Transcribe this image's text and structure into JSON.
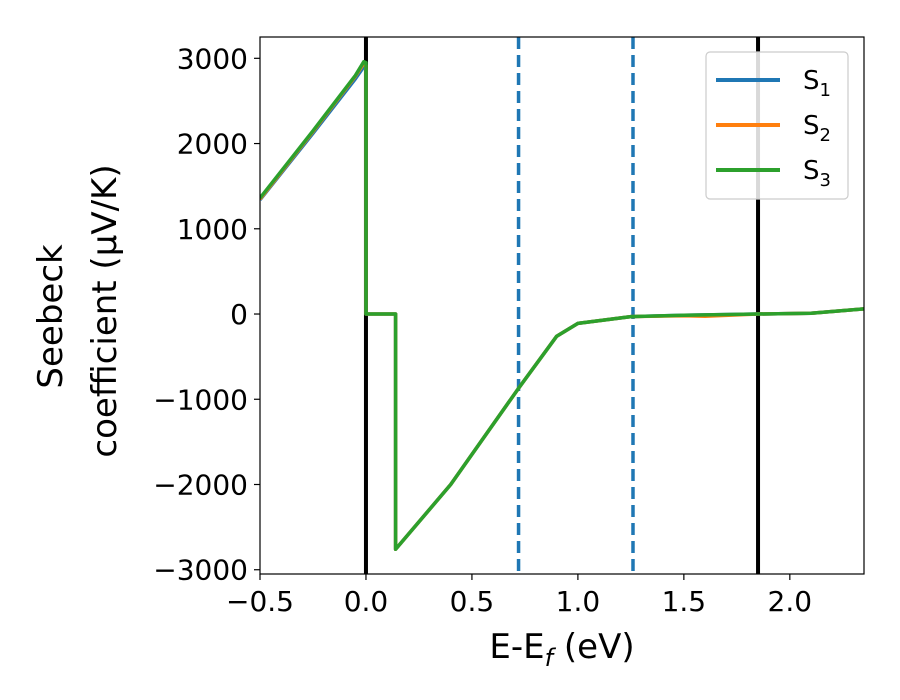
{
  "chart_data": {
    "type": "line",
    "xlabel": "E-E",
    "xlabel_sub": "f",
    "xlabel_unit": " (eV)",
    "ylabel_line1": "Seebeck",
    "ylabel_line2": "coefficient  (μV/K)",
    "xlim": [
      -0.5,
      2.35
    ],
    "ylim": [
      -3050,
      3250
    ],
    "xticks": [
      -0.5,
      0.0,
      0.5,
      1.0,
      1.5,
      2.0
    ],
    "xtick_labels": [
      "−0.5",
      "0.0",
      "0.5",
      "1.0",
      "1.5",
      "2.0"
    ],
    "yticks": [
      -3000,
      -2000,
      -1000,
      0,
      1000,
      2000,
      3000
    ],
    "ytick_labels": [
      "−3000",
      "−2000",
      "−1000",
      "0",
      "1000",
      "2000",
      "3000"
    ],
    "grid": false,
    "legend_position": "top-right",
    "series": [
      {
        "name": "S",
        "sub": "1",
        "color": "#1f77b4",
        "points": [
          [
            -0.5,
            1340
          ],
          [
            -0.25,
            2120
          ],
          [
            -0.05,
            2760
          ],
          [
            -0.01,
            2900
          ],
          [
            0.0,
            2870
          ],
          [
            0.0,
            0
          ],
          [
            0.14,
            0
          ],
          [
            0.14,
            -2760
          ],
          [
            0.4,
            -2000
          ],
          [
            0.72,
            -870
          ],
          [
            0.9,
            -260
          ],
          [
            1.0,
            -110
          ],
          [
            1.25,
            -30
          ],
          [
            1.5,
            -15
          ],
          [
            1.85,
            0
          ],
          [
            2.1,
            10
          ],
          [
            2.35,
            60
          ]
        ]
      },
      {
        "name": "S",
        "sub": "2",
        "color": "#ff7f0e",
        "points": [
          [
            -0.5,
            1350
          ],
          [
            -0.25,
            2140
          ],
          [
            -0.05,
            2790
          ],
          [
            -0.01,
            2940
          ],
          [
            0.0,
            2920
          ],
          [
            0.0,
            0
          ],
          [
            0.14,
            0
          ],
          [
            0.14,
            -2760
          ],
          [
            0.4,
            -2000
          ],
          [
            0.72,
            -870
          ],
          [
            0.9,
            -260
          ],
          [
            1.0,
            -110
          ],
          [
            1.25,
            -30
          ],
          [
            1.5,
            -20
          ],
          [
            1.6,
            -25
          ],
          [
            1.85,
            0
          ],
          [
            2.1,
            10
          ],
          [
            2.35,
            60
          ]
        ]
      },
      {
        "name": "S",
        "sub": "3",
        "color": "#2ca02c",
        "points": [
          [
            -0.5,
            1360
          ],
          [
            -0.25,
            2150
          ],
          [
            -0.05,
            2800
          ],
          [
            -0.01,
            2960
          ],
          [
            0.0,
            2950
          ],
          [
            0.0,
            0
          ],
          [
            0.14,
            0
          ],
          [
            0.14,
            -2760
          ],
          [
            0.4,
            -2000
          ],
          [
            0.72,
            -870
          ],
          [
            0.9,
            -260
          ],
          [
            1.0,
            -110
          ],
          [
            1.25,
            -30
          ],
          [
            1.5,
            -15
          ],
          [
            1.85,
            0
          ],
          [
            2.1,
            10
          ],
          [
            2.35,
            60
          ]
        ]
      }
    ],
    "vlines": [
      {
        "x": 0.0,
        "color": "#000000",
        "style": "solid"
      },
      {
        "x": 1.85,
        "color": "#000000",
        "style": "solid"
      },
      {
        "x": 0.72,
        "color": "#1f77b4",
        "style": "dashed"
      },
      {
        "x": 1.26,
        "color": "#1f77b4",
        "style": "dashed"
      }
    ]
  }
}
